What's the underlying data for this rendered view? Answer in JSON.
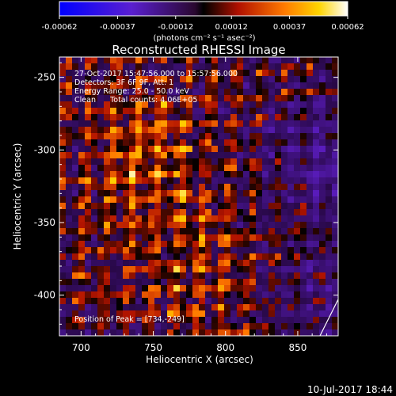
{
  "chart_data": {
    "type": "heatmap",
    "title": "Reconstructed RHESSI Image",
    "colorbar": {
      "ticks": [
        "-0.00062",
        "-0.00037",
        "-0.00012",
        "0.00012",
        "0.00037",
        "0.00062"
      ],
      "unit_label": "(photons cm⁻² s⁻¹ asec⁻²)",
      "range": [
        -0.00062,
        0.00062
      ]
    },
    "xlabel": "Heliocentric X (arcsec)",
    "ylabel": "Heliocentric Y (arcsec)",
    "xlim": [
      685,
      878
    ],
    "ylim": [
      -428,
      -236
    ],
    "x_ticks": [
      700,
      750,
      800,
      850
    ],
    "y_ticks": [
      -250,
      -300,
      -350,
      -400
    ],
    "annotations": [
      "27-Oct-2017 15:47:56.000 to 15:57:56.000",
      "Detectors: 3F 6F 9F, Att: 1",
      "Energy Range: 25.0 - 50.0 keV",
      "Clean      Total counts: 4.06E+05",
      "Position of Peak = [734,-249]"
    ],
    "footer": "10-Jul-2017 18:44"
  }
}
